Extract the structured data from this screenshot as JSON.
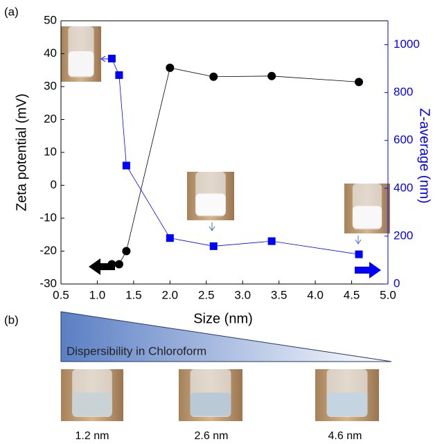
{
  "panel_labels": [
    "(a)",
    "(b)"
  ],
  "chart_data": {
    "type": "line",
    "xlabel": "Size (nm)",
    "ylabel": "Zeta potential (mV)",
    "y2label": "Z-average (nm)",
    "x": [
      1.2,
      1.3,
      1.4,
      2.0,
      2.6,
      3.4,
      4.6
    ],
    "series": [
      {
        "color": "#000000",
        "marker": "circle",
        "values": [
          -24,
          -24,
          -20,
          35.7,
          33,
          33.2,
          31.4
        ]
      },
      {
        "color": "#0000ff",
        "marker": "square",
        "axis": "y2",
        "values": [
          942,
          873,
          495,
          192,
          158,
          179,
          124
        ]
      }
    ],
    "xlim": [
      0.5,
      5.0
    ],
    "xticks": [
      0.5,
      {
        "value": 1,
        "label": "1.0"
      },
      1.5,
      {
        "value": 2,
        "label": "2.0"
      },
      2.5,
      {
        "value": 3,
        "label": "3.0"
      },
      3.5,
      {
        "value": 4,
        "label": "4.0"
      },
      4.5,
      {
        "value": 5,
        "label": "5.0"
      }
    ],
    "ylim": [
      -30,
      50
    ],
    "yticks": [
      -30,
      -20,
      -10,
      0,
      10,
      20,
      30,
      40,
      50
    ],
    "y2lim": [
      0,
      1100
    ],
    "y2ticks": [
      0,
      200,
      400,
      600,
      800,
      1000
    ]
  },
  "dispersibility": {
    "text": "Dispersibility in Chloroform",
    "samples": [
      "1.2 nm",
      "2.6 nm",
      "4.6 nm"
    ]
  }
}
